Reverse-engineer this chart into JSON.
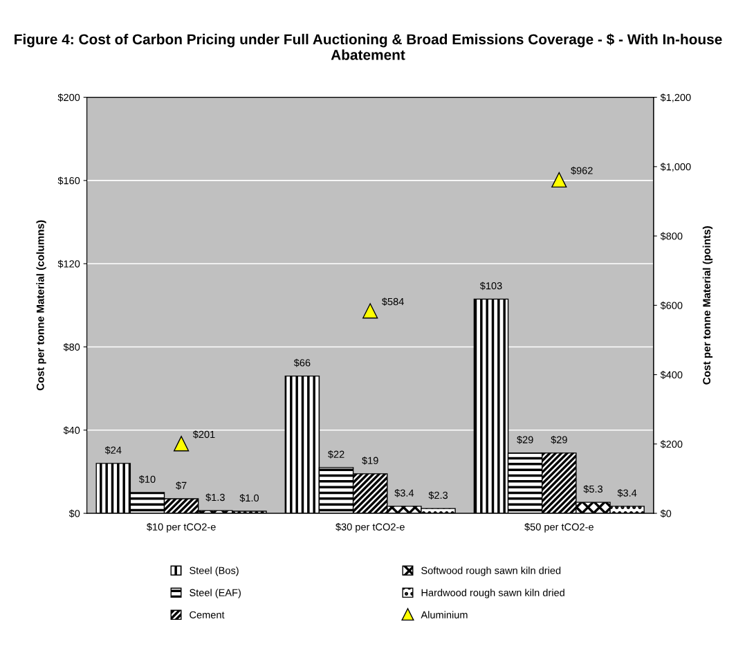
{
  "chart_data": {
    "type": "bar",
    "title": "Figure 4: Cost of Carbon Pricing under Full Auctioning & Broad Emissions Coverage - $ - With In-house Abatement",
    "categories": [
      "$10 per tCO2-e",
      "$30 per tCO2-e",
      "$50 per tCO2-e"
    ],
    "series": [
      {
        "name": "Steel (Bos)",
        "color": "#000000",
        "values": [
          24,
          66,
          103
        ],
        "value_labels": [
          "$24",
          "$66",
          "$103"
        ]
      },
      {
        "name": "Steel (EAF)",
        "color": "#000000",
        "values": [
          10,
          22,
          29
        ],
        "value_labels": [
          "$10",
          "$22",
          "$29"
        ]
      },
      {
        "name": "Cement",
        "color": "#000000",
        "values": [
          7,
          19,
          29
        ],
        "value_labels": [
          "$7",
          "$19",
          "$29"
        ]
      },
      {
        "name": "Softwood rough sawn kiln dried",
        "color": "#000000",
        "values": [
          1.3,
          3.4,
          5.3
        ],
        "value_labels": [
          "$1.3",
          "$3.4",
          "$5.3"
        ]
      },
      {
        "name": "Hardwood rough sawn kiln dried",
        "color": "#000000",
        "values": [
          1.0,
          2.3,
          3.4
        ],
        "value_labels": [
          "$1.0",
          "$2.3",
          "$3.4"
        ]
      },
      {
        "name": "Aluminium",
        "type": "scatter",
        "axis": "y2",
        "marker": "triangle",
        "color": "#ffff00",
        "values": [
          201,
          584,
          962
        ],
        "value_labels": [
          "$201",
          "$584",
          "$962"
        ]
      }
    ],
    "ylabel": "Cost per tonne Material (columns)",
    "y2label": "Cost per tonne Material (points)",
    "ylim": [
      0,
      200
    ],
    "yticks": [
      {
        "value": 0,
        "label": "$0"
      },
      {
        "value": 40,
        "label": "$40"
      },
      {
        "value": 80,
        "label": "$80"
      },
      {
        "value": 120,
        "label": "$120"
      },
      {
        "value": 160,
        "label": "$160"
      },
      {
        "value": 200,
        "label": "$200"
      }
    ],
    "y2lim": [
      0,
      1200
    ],
    "y2ticks": [
      {
        "value": 0,
        "label": "$0"
      },
      {
        "value": 200,
        "label": "$200"
      },
      {
        "value": 400,
        "label": "$400"
      },
      {
        "value": 600,
        "label": "$600"
      },
      {
        "value": 800,
        "label": "$800"
      },
      {
        "value": 1000,
        "label": "$1,000"
      },
      {
        "value": 1200,
        "label": "$1,200"
      }
    ],
    "grid": "y",
    "legend": "bottom"
  }
}
